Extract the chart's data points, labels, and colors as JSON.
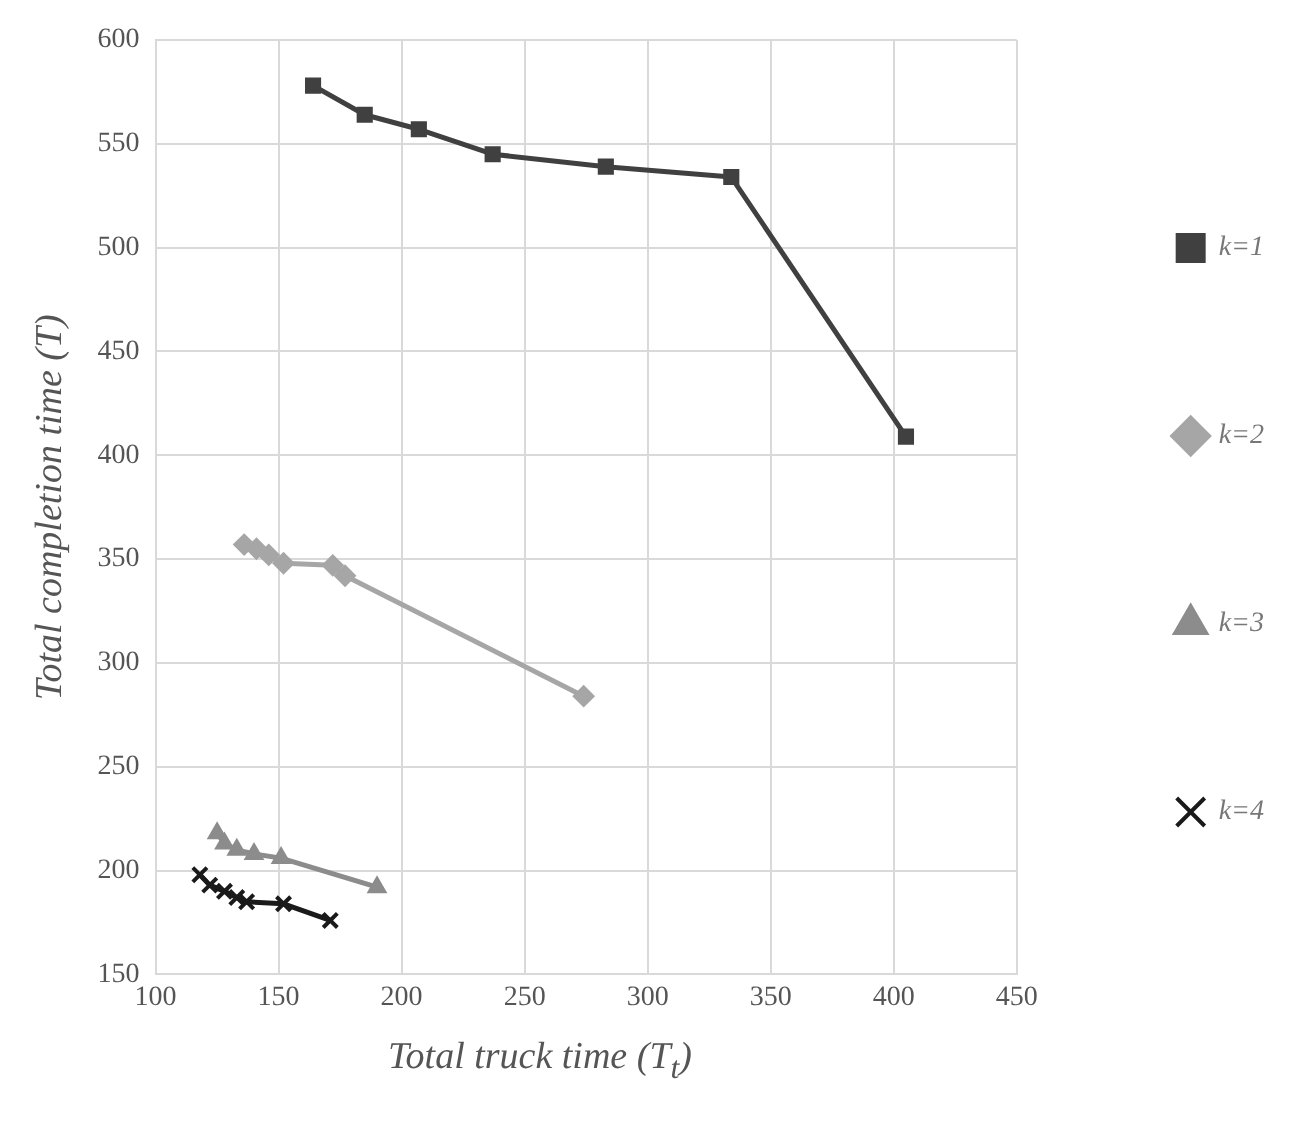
{
  "chart_data": {
    "type": "line",
    "xlabel": "Total truck time (T$_{t}$)",
    "ylabel": "Total completion time (T)",
    "xlim": [
      100,
      450
    ],
    "xticks": [
      100,
      150,
      200,
      250,
      300,
      350,
      400,
      450
    ],
    "ylim": [
      150,
      600
    ],
    "yticks": [
      150,
      200,
      250,
      300,
      350,
      400,
      450,
      500,
      550,
      600
    ],
    "grid": true,
    "legend": "right",
    "line_style": "solid",
    "series": [
      {
        "name": "k=1",
        "color": "#404040",
        "marker": "square",
        "x": [
          164,
          185,
          207,
          237,
          283,
          334,
          405
        ],
        "values": [
          578,
          564,
          557,
          545,
          539,
          534,
          409
        ]
      },
      {
        "name": "k=2",
        "color": "#a6a6a6",
        "marker": "diamond",
        "x": [
          136,
          141,
          146,
          152,
          172,
          177,
          274
        ],
        "values": [
          357,
          355,
          352,
          348,
          347,
          342,
          284
        ]
      },
      {
        "name": "k=3",
        "color": "#8c8c8c",
        "marker": "triangle",
        "x": [
          125,
          128,
          133,
          140,
          151,
          190
        ],
        "values": [
          218,
          213,
          210,
          208,
          206,
          192
        ]
      },
      {
        "name": "k=4",
        "color": "#1a1a1a",
        "marker": "cross",
        "x": [
          118,
          122,
          128,
          133,
          137,
          152,
          171
        ],
        "values": [
          198,
          193,
          190,
          187,
          185,
          184,
          176
        ]
      }
    ]
  }
}
